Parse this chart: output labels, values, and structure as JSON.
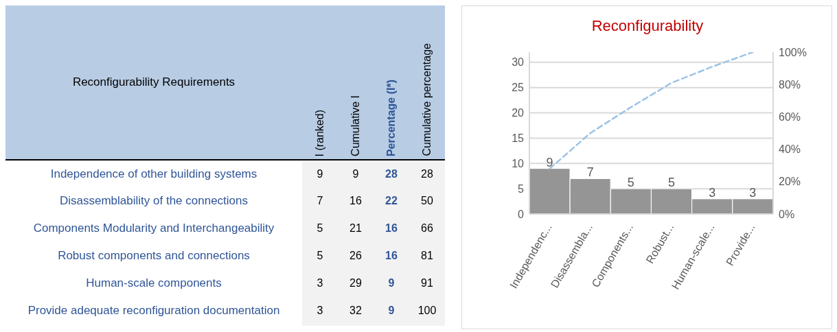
{
  "chart_data": [
    {
      "type": "other",
      "title": "Reconfigurability Requirements",
      "data_labels": true,
      "categories": [
        "Independence of other building systems",
        "Disassemblability of the connections",
        "Components Modularity and Interchangeability",
        "Robust components and connections",
        "Human-scale components",
        "Provide adequate reconfiguration documentation"
      ],
      "series": [
        {
          "name": "I (ranked)",
          "values": [
            9,
            7,
            5,
            5,
            3,
            3
          ]
        },
        {
          "name": "Cumulative I",
          "values": [
            9,
            16,
            21,
            26,
            29,
            32
          ]
        },
        {
          "name": "Percentage (I*)",
          "values": [
            28,
            22,
            16,
            16,
            9,
            9
          ]
        },
        {
          "name": "Cumulative percentage",
          "values": [
            28,
            50,
            66,
            81,
            91,
            100
          ]
        }
      ]
    },
    {
      "type": "bar",
      "title": "Reconfigurability",
      "categories": [
        "Independenc...",
        "Disassembla...",
        "Components...",
        "Robust...",
        "Human-scale...",
        "Provide..."
      ],
      "series": [
        {
          "type": "bar",
          "color": "#959595",
          "values": [
            9,
            7,
            5,
            5,
            3,
            3
          ],
          "value_labels": [
            "9",
            "7",
            "5",
            "5",
            "3",
            "3"
          ]
        },
        {
          "type": "line",
          "axis": "y2",
          "color": "#9dc3e6",
          "line_style": "dashed",
          "values": [
            28,
            50,
            66,
            81,
            91,
            100
          ]
        }
      ],
      "ylim": [
        0,
        32
      ],
      "yticks": [
        0,
        5,
        10,
        15,
        20,
        25,
        30
      ],
      "y2lim": [
        0,
        100
      ],
      "y2ticks": [
        {
          "value": 0,
          "label": "0%"
        },
        {
          "value": 20,
          "label": "20%"
        },
        {
          "value": 40,
          "label": "40%"
        },
        {
          "value": 60,
          "label": "60%"
        },
        {
          "value": 80,
          "label": "80%"
        },
        {
          "value": 100,
          "label": "100%"
        }
      ],
      "grid": "y",
      "legend": false
    }
  ]
}
